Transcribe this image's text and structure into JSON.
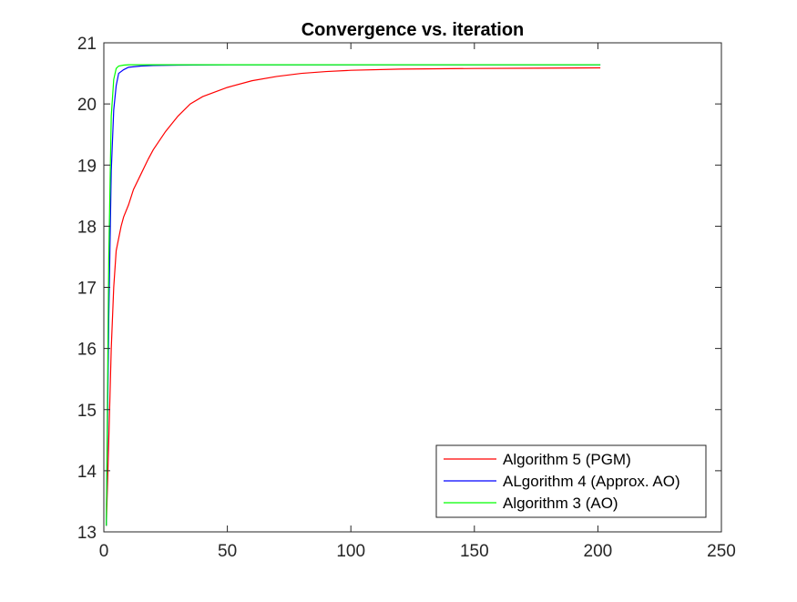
{
  "chart_data": {
    "type": "line",
    "title": "Convergence vs. iteration",
    "xlabel": "",
    "ylabel": "",
    "xlim": [
      0,
      250
    ],
    "ylim": [
      13,
      21
    ],
    "x_ticks": [
      0,
      50,
      100,
      150,
      200,
      250
    ],
    "y_ticks": [
      13,
      14,
      15,
      16,
      17,
      18,
      19,
      20,
      21
    ],
    "grid": false,
    "legend_position": "bottom-right",
    "series": [
      {
        "name": "Algorithm 5 (PGM)",
        "color": "#ff0000",
        "x": [
          1,
          2,
          3,
          4,
          5,
          6,
          7,
          8,
          10,
          12,
          15,
          18,
          20,
          25,
          30,
          35,
          40,
          50,
          60,
          70,
          80,
          90,
          100,
          120,
          150,
          175,
          201
        ],
        "y": [
          13.1,
          14.5,
          16.0,
          17.0,
          17.6,
          17.8,
          18.0,
          18.15,
          18.35,
          18.6,
          18.85,
          19.1,
          19.25,
          19.55,
          19.8,
          20.0,
          20.12,
          20.27,
          20.38,
          20.45,
          20.5,
          20.53,
          20.55,
          20.57,
          20.58,
          20.585,
          20.59
        ]
      },
      {
        "name": "ALgorithm 4 (Approx. AO)",
        "color": "#0000ff",
        "x": [
          1,
          2,
          3,
          4,
          5,
          6,
          8,
          10,
          15,
          20,
          30,
          50,
          100,
          150,
          201
        ],
        "y": [
          13.1,
          16.5,
          18.9,
          19.9,
          20.3,
          20.5,
          20.56,
          20.6,
          20.62,
          20.63,
          20.635,
          20.64,
          20.64,
          20.64,
          20.64
        ]
      },
      {
        "name": "Algorithm 3 (AO)",
        "color": "#00ff00",
        "x": [
          1,
          2,
          3,
          4,
          5,
          6,
          8,
          10,
          20,
          50,
          100,
          150,
          201
        ],
        "y": [
          13.1,
          17.5,
          19.8,
          20.4,
          20.58,
          20.62,
          20.635,
          20.64,
          20.64,
          20.64,
          20.64,
          20.64,
          20.64
        ]
      }
    ]
  }
}
